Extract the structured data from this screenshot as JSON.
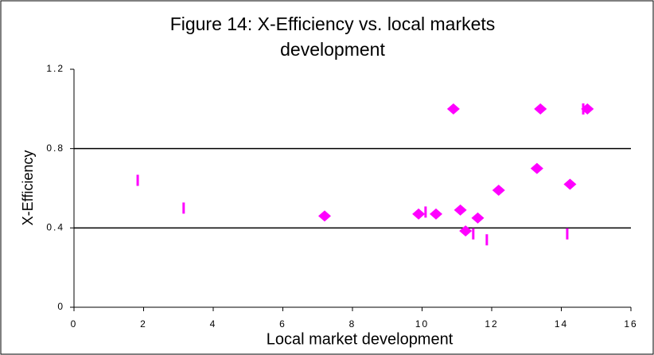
{
  "chart_data": {
    "type": "scatter",
    "title": "Figure 14: X-Efficiency vs. local markets development",
    "x_label": "Local market development",
    "y_label": "X-Efficiency",
    "xlim": [
      0,
      16
    ],
    "xticks": [
      0,
      2,
      4,
      6,
      8,
      10,
      12,
      14,
      16
    ],
    "ylim": [
      0,
      1.2
    ],
    "yticks": [
      0,
      0.4,
      0.8,
      1.2
    ],
    "grid": true,
    "series": [
      {
        "marker": "diamond",
        "color": "#ff00ff",
        "x": [
          7.2,
          10.9,
          13.4,
          14.75,
          13.3,
          14.25,
          12.2,
          11.1,
          9.9,
          10.4,
          11.6,
          11.25
        ],
        "values": [
          0.46,
          1.0,
          1.0,
          1.0,
          0.7,
          0.62,
          0.59,
          0.49,
          0.47,
          0.47,
          0.45,
          0.385
        ]
      },
      {
        "marker": "bar",
        "color": "#ff00ff",
        "x": [
          1.83,
          3.15,
          10.1,
          11.47,
          11.86,
          14.17,
          14.63
        ],
        "values": [
          0.64,
          0.5,
          0.48,
          0.37,
          0.34,
          0.37,
          1.0
        ]
      }
    ]
  }
}
